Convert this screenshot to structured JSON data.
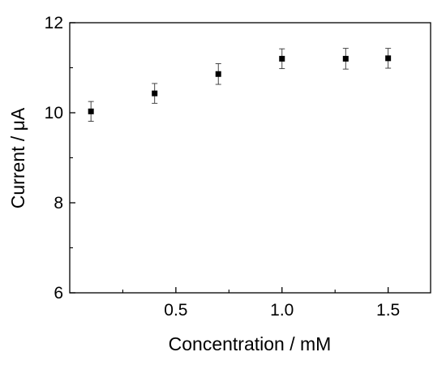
{
  "chart_data": {
    "type": "scatter",
    "xlabel": "Concentration / mM",
    "ylabel": "Current / μA",
    "xlim": [
      0.0,
      1.7
    ],
    "ylim": [
      6,
      12
    ],
    "x_ticks": [
      0.5,
      1.0,
      1.5
    ],
    "x_tick_labels": [
      "0.5",
      "1.0",
      "1.5"
    ],
    "y_ticks": [
      6,
      8,
      10,
      12
    ],
    "y_tick_labels": [
      "6",
      "8",
      "10",
      "12"
    ],
    "grid": false,
    "legend": "none",
    "marker": "filled-square",
    "marker_color": "#000000",
    "series": [
      {
        "x": [
          0.1,
          0.4,
          0.7,
          1.0,
          1.3,
          1.5
        ],
        "y": [
          10.03,
          10.43,
          10.86,
          11.2,
          11.2,
          11.21
        ],
        "error": [
          0.22,
          0.22,
          0.23,
          0.22,
          0.23,
          0.22
        ]
      }
    ]
  }
}
